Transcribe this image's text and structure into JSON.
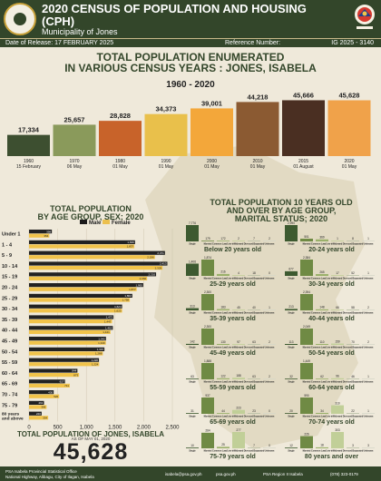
{
  "header": {
    "title": "2020 CENSUS OF POPULATION AND HOUSING (CPH)",
    "subtitle": "Municipality of Jones",
    "date_label": "Date of Release: 17 FEBRUARY 2025",
    "ref_label": "Reference Number:",
    "ref_number": "IG 2025 - 3140"
  },
  "colors": {
    "brand": "#33462a",
    "male": "#1a1a1a",
    "female": "#ecc04e",
    "male_bar": "#222222",
    "female_bar": "#f1c34a"
  },
  "chart_data": [
    {
      "type": "bar",
      "title": "TOTAL POPULATION ENUMERATED IN VARIOUS CENSUS YEARS : JONES, ISABELA",
      "subtitle": "1960 - 2020",
      "categories": [
        "1960\n15 February",
        "1970\n06 May",
        "1980\n01 May",
        "1990\n01 May",
        "2000\n01 May",
        "2010\n01 May",
        "2015\n01 August",
        "2020\n01 May"
      ],
      "category_years": [
        "1960",
        "1970",
        "1980",
        "1990",
        "2000",
        "2010",
        "2015",
        "2020"
      ],
      "category_dates": [
        "15 February",
        "06 May",
        "01 May",
        "01 May",
        "01 May",
        "01 May",
        "01 August",
        "01 May"
      ],
      "values": [
        17334,
        25657,
        28828,
        34373,
        39001,
        44218,
        45666,
        45628
      ],
      "value_labels": [
        "17,334",
        "25,657",
        "28,828",
        "34,373",
        "39,001",
        "44,218",
        "45,666",
        "45,628"
      ],
      "colors": [
        "#3d4f30",
        "#8a9a5b",
        "#c8632a",
        "#e9c04b",
        "#f3a73a",
        "#8b5a32",
        "#4a2f22",
        "#f0a24a"
      ]
    },
    {
      "type": "bar",
      "title": "TOTAL POPULATION BY AGE GROUP, SEX; 2020",
      "categories": [
        "Under 1",
        "1 - 4",
        "5 - 9",
        "10 - 14",
        "15 - 19",
        "20 - 24",
        "25 - 29",
        "30 - 34",
        "35 - 39",
        "40 - 44",
        "45 - 49",
        "50 - 54",
        "55 - 59",
        "60 - 64",
        "65 - 69",
        "70 - 74",
        "75 - 79",
        "80 years and above"
      ],
      "series": [
        {
          "name": "Male",
          "values": [
            398,
            1849,
            2371,
            2413,
            2216,
            1993,
            1802,
            1624,
            1473,
            1462,
            1342,
            1315,
            1220,
            844,
            627,
            430,
            261,
            220
          ]
        },
        {
          "name": "Female",
          "values": [
            354,
            1837,
            2196,
            2329,
            2060,
            1877,
            1758,
            1623,
            1447,
            1421,
            1340,
            1288,
            1224,
            873,
            711,
            526,
            306,
            334
          ]
        }
      ],
      "legend": [
        "Male",
        "Female"
      ],
      "xticks": [
        "0",
        "500",
        "1,000",
        "1,500",
        "2,000",
        "2,500"
      ],
      "xlim": [
        0,
        2500
      ]
    },
    {
      "type": "bar",
      "title": "TOTAL POPULATION 10 YEARS OLD AND OVER BY AGE GROUP, MARITAL STATUS; 2020",
      "status_labels": [
        "Single",
        "Married",
        "Common Law/Live-in",
        "Widowed",
        "Divorced/Separated",
        "Unknown"
      ],
      "groups": [
        {
          "label": "Below 20 years old",
          "values": [
            7776,
            179,
            172,
            2,
            7,
            2
          ]
        },
        {
          "label": "20-24 years old",
          "values": [
            2990,
            501,
            369,
            1,
            8,
            1
          ]
        },
        {
          "label": "25-29 years old",
          "values": [
            1406,
            1874,
            216,
            4,
            18,
            0
          ]
        },
        {
          "label": "30-34 years old",
          "values": [
            677,
            2384,
            265,
            17,
            52,
            1
          ]
        },
        {
          "label": "35-39 years old",
          "values": [
            313,
            2300,
            183,
            45,
            40,
            1
          ]
        },
        {
          "label": "40-44 years old",
          "values": [
            213,
            2394,
            148,
            66,
            58,
            2
          ]
        },
        {
          "label": "45-49 years old",
          "values": [
            142,
            2300,
            130,
            97,
            63,
            2
          ]
        },
        {
          "label": "50-54 years old",
          "values": [
            113,
            2049,
            110,
            159,
            70,
            2
          ]
        },
        {
          "label": "55-59 years old",
          "values": [
            63,
            1888,
            122,
            188,
            63,
            2
          ]
        },
        {
          "label": "60-64 years old",
          "values": [
            32,
            1449,
            62,
            96,
            46,
            1
          ]
        },
        {
          "label": "65-69 years old",
          "values": [
            31,
            937,
            44,
            223,
            23,
            0
          ]
        },
        {
          "label": "70-74 years old",
          "values": [
            20,
            590,
            34,
            310,
            22,
            1
          ]
        },
        {
          "label": "75-79 years old",
          "values": [
            10,
            264,
            25,
            277,
            7,
            0
          ]
        },
        {
          "label": "80 years and over",
          "values": [
            12,
            226,
            18,
            303,
            3,
            3
          ]
        }
      ]
    }
  ],
  "age_sex": {
    "title_line1": "TOTAL POPULATION",
    "title_line2": "BY AGE GROUP, SEX; 2020"
  },
  "marital": {
    "title_line1": "TOTAL POPULATION 10 YEARS OLD",
    "title_line2": "AND OVER BY AGE GROUP,",
    "title_line3": "MARITAL STATUS; 2020"
  },
  "main": {
    "title_line1": "TOTAL POPULATION ENUMERATED",
    "title_line2": "IN VARIOUS CENSUS YEARS : JONES, ISABELA"
  },
  "total": {
    "label": "TOTAL POPULATION OF JONES, ISABELA",
    "as_of": "AS OF MAY 01, 2020",
    "value": "45,628"
  },
  "footer": {
    "office": "PSA Isabela Provincial Statistical Office",
    "address": "National Highway, Alibagu, City of Ilagan, Isabela",
    "email": "isabela@psa.gov.ph",
    "web": "psa.gov.ph",
    "fb": "PSA Region II Isabela",
    "phone": "(078) 323-0179"
  }
}
